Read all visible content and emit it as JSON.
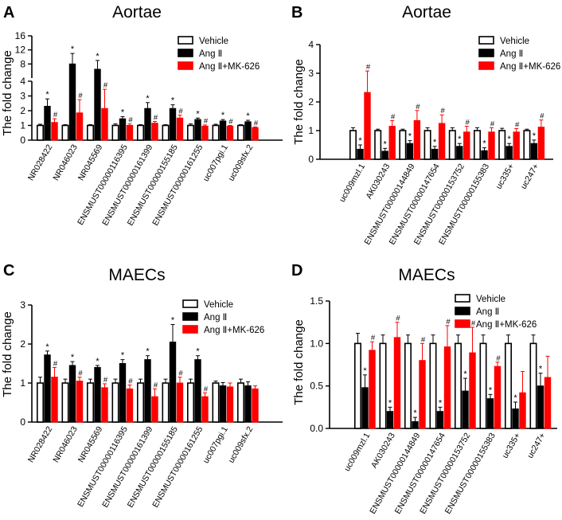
{
  "figure": {
    "ylabel": "The fold change",
    "legend": [
      "Vehicle",
      "Ang Ⅱ",
      "Ang Ⅱ+MK-626"
    ],
    "series_colors": [
      "#ffffff",
      "#000000",
      "#ff0000"
    ]
  },
  "chart_data": [
    {
      "panel": "A",
      "type": "bar",
      "title": "Aortae",
      "ylabel": "The fold change",
      "axis_break": {
        "lower": [
          0,
          4
        ],
        "upper": [
          4,
          16
        ]
      },
      "yticks_lower": [
        "0",
        "1",
        "2",
        "3",
        "4"
      ],
      "yticks_upper": [
        "8",
        "12",
        "16"
      ],
      "categories": [
        "NR028422",
        "NR046023",
        "NR045569",
        "ENSMUST00000116395",
        "ENSMUST00000161399",
        "ENSMUST00000155185",
        "ENSMUST00000161255",
        "uc007pgi.1",
        "uc009sfx.2"
      ],
      "series": [
        {
          "name": "Vehicle",
          "values": [
            1.0,
            1.0,
            1.0,
            1.0,
            1.0,
            1.0,
            1.0,
            1.0,
            1.0
          ],
          "errors": [
            0.08,
            0.05,
            0.05,
            0.1,
            0.05,
            0.05,
            0.1,
            0.08,
            0.05
          ]
        },
        {
          "name": "Ang Ⅱ",
          "values": [
            2.3,
            8.0,
            6.5,
            1.45,
            2.15,
            2.15,
            1.4,
            1.3,
            1.25
          ],
          "errors": [
            0.5,
            3.0,
            2.5,
            0.15,
            0.4,
            0.25,
            0.1,
            0.1,
            0.1
          ]
        },
        {
          "name": "Ang Ⅱ+MK-626",
          "values": [
            1.2,
            1.85,
            2.15,
            1.0,
            1.15,
            1.5,
            0.95,
            0.95,
            0.85
          ],
          "errors": [
            0.25,
            0.9,
            1.3,
            0.1,
            0.12,
            0.2,
            0.08,
            0.05,
            0.05
          ]
        }
      ],
      "markers": {
        "Ang Ⅱ": "*",
        "Ang Ⅱ+MK-626": "#"
      }
    },
    {
      "panel": "B",
      "type": "bar",
      "title": "Aortae",
      "ylabel": "The fold change",
      "ylim": [
        0,
        4
      ],
      "yticks": [
        "0",
        "1",
        "2",
        "3",
        "4"
      ],
      "categories": [
        "uc009mzl.1",
        "AK030243",
        "ENSMUST00000144849",
        "ENSMUST00000147654",
        "ENSMUST00000153752",
        "ENSMUST00000155383",
        "uc335+",
        "uc247+"
      ],
      "series": [
        {
          "name": "Vehicle",
          "values": [
            1.0,
            1.0,
            1.0,
            1.0,
            1.0,
            1.0,
            1.0,
            1.0
          ],
          "errors": [
            0.1,
            0.05,
            0.05,
            0.1,
            0.1,
            0.1,
            0.08,
            0.05
          ]
        },
        {
          "name": "Ang Ⅱ",
          "values": [
            0.35,
            0.28,
            0.55,
            0.35,
            0.45,
            0.3,
            0.45,
            0.55
          ],
          "errors": [
            0.15,
            0.1,
            0.1,
            0.1,
            0.1,
            0.1,
            0.1,
            0.12
          ]
        },
        {
          "name": "Ang Ⅱ+MK-626",
          "values": [
            2.33,
            1.15,
            1.35,
            1.25,
            0.95,
            0.95,
            0.95,
            1.12
          ],
          "errors": [
            0.75,
            0.2,
            0.35,
            0.3,
            0.2,
            0.15,
            0.12,
            0.25
          ]
        }
      ],
      "markers": {
        "Ang Ⅱ": "*",
        "Ang Ⅱ+MK-626": "#"
      }
    },
    {
      "panel": "C",
      "type": "bar",
      "title": "MAECs",
      "ylabel": "The fold change",
      "ylim": [
        0,
        3
      ],
      "yticks": [
        "0",
        "1",
        "2",
        "3"
      ],
      "categories": [
        "NR028422",
        "NR046023",
        "NR045569",
        "ENSMUST00000116395",
        "ENSMUST00000161399",
        "ENSMUST00000155185",
        "ENSMUST00000161255",
        "uc007pgi.1",
        "uc009sfx.2"
      ],
      "series": [
        {
          "name": "Vehicle",
          "values": [
            1.0,
            1.0,
            1.0,
            1.0,
            1.0,
            1.0,
            1.0,
            1.0,
            1.0
          ],
          "errors": [
            0.15,
            0.1,
            0.1,
            0.1,
            0.1,
            0.1,
            0.1,
            0.05,
            0.1
          ]
        },
        {
          "name": "Ang Ⅱ",
          "values": [
            1.72,
            1.45,
            1.4,
            1.5,
            1.6,
            2.05,
            1.6,
            0.93,
            0.93
          ]
        },
        {
          "name": "Ang Ⅱ+MK-626",
          "values": [
            1.15,
            1.05,
            0.88,
            0.85,
            0.65,
            1.0,
            0.65,
            0.9,
            0.85
          ]
        }
      ],
      "errors_ang": [
        0.1,
        0.1,
        0.05,
        0.1,
        0.1,
        0.45,
        0.1,
        0.08,
        0.1
      ],
      "errors_mk": [
        0.25,
        0.1,
        0.1,
        0.1,
        0.2,
        0.15,
        0.1,
        0.1,
        0.08
      ],
      "star_flags": [
        true,
        true,
        true,
        true,
        true,
        true,
        true,
        false,
        false
      ],
      "hash_flags": [
        true,
        true,
        true,
        true,
        true,
        true,
        true,
        false,
        false
      ],
      "markers": {
        "Ang Ⅱ": "*",
        "Ang Ⅱ+MK-626": "#"
      }
    },
    {
      "panel": "D",
      "type": "bar",
      "title": "MAECs",
      "ylabel": "The fold change",
      "ylim": [
        0,
        1.5
      ],
      "yticks": [
        "0.0",
        "0.5",
        "1.0",
        "1.5"
      ],
      "categories": [
        "uc009mzl.1",
        "AK030243",
        "ENSMUST00000144849",
        "ENSMUST00000147654",
        "ENSMUST00000153752",
        "ENSMUST00000155383",
        "uc335+",
        "uc247+"
      ],
      "series": [
        {
          "name": "Vehicle",
          "values": [
            1.0,
            1.0,
            1.0,
            1.0,
            1.0,
            1.0,
            1.0,
            1.0
          ],
          "errors": [
            0.12,
            0.1,
            0.1,
            0.1,
            0.1,
            0.1,
            0.1,
            0.1
          ]
        },
        {
          "name": "Ang Ⅱ",
          "values": [
            0.48,
            0.2,
            0.08,
            0.2,
            0.44,
            0.35,
            0.23,
            0.5
          ],
          "errors": [
            0.15,
            0.05,
            0.05,
            0.05,
            0.15,
            0.05,
            0.08,
            0.15
          ]
        },
        {
          "name": "Ang Ⅱ+MK-626",
          "values": [
            0.92,
            1.07,
            0.8,
            0.96,
            0.89,
            0.73,
            0.42,
            0.6
          ],
          "errors": [
            0.1,
            0.18,
            0.2,
            0.25,
            0.3,
            0.05,
            0.25,
            0.25
          ]
        }
      ],
      "star_flags": [
        true,
        true,
        true,
        true,
        true,
        true,
        true,
        true
      ],
      "hash_flags": [
        true,
        true,
        true,
        true,
        true,
        true,
        false,
        false
      ],
      "markers": {
        "Ang Ⅱ": "*",
        "Ang Ⅱ+MK-626": "#"
      }
    }
  ]
}
